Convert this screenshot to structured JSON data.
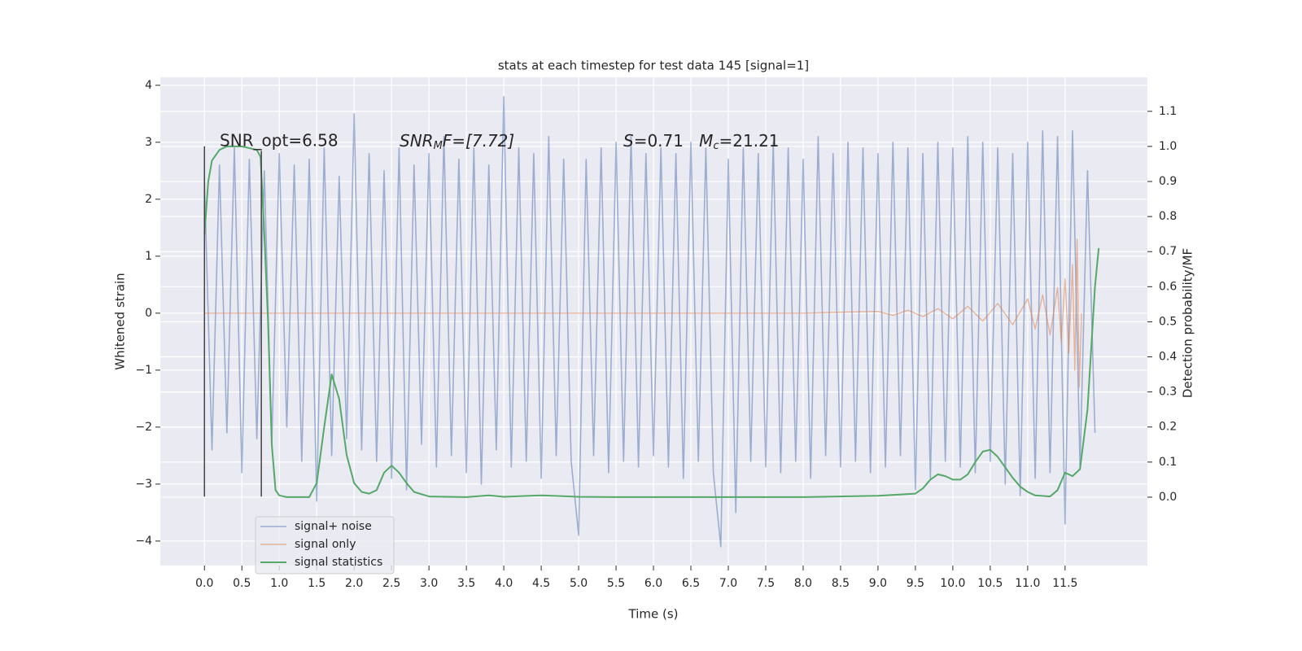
{
  "chart_data": {
    "type": "line",
    "title": "stats at each timestep for test data 145 [signal=1]",
    "xlabel": "Time (s)",
    "ylabel": "Whitened strain",
    "y2label": "Detection probability/MF",
    "xlim": [
      -0.59,
      12.6
    ],
    "ylim": [
      -4.43,
      4.14
    ],
    "y2lim": [
      -0.195,
      1.197
    ],
    "xticks": [
      {
        "value": 0,
        "label": "0.0"
      },
      0.5,
      {
        "value": 1,
        "label": "1.0"
      },
      1.5,
      {
        "value": 2,
        "label": "2.0"
      },
      2.5,
      {
        "value": 3,
        "label": "3.0"
      },
      3.5,
      {
        "value": 4,
        "label": "4.0"
      },
      4.5,
      {
        "value": 5,
        "label": "5.0"
      },
      5.5,
      {
        "value": 6,
        "label": "6.0"
      },
      6.5,
      {
        "value": 7,
        "label": "7.0"
      },
      7.5,
      {
        "value": 8,
        "label": "8.0"
      },
      8.5,
      {
        "value": 9,
        "label": "9.0"
      },
      9.5,
      {
        "value": 10,
        "label": "10.0"
      },
      10.5,
      {
        "value": 11,
        "label": "11.0"
      },
      11.5
    ],
    "yticks": [
      {
        "value": -4,
        "label": "−4"
      },
      {
        "value": -3,
        "label": "−3"
      },
      {
        "value": -2,
        "label": "−2"
      },
      {
        "value": -1,
        "label": "−1"
      },
      0,
      1,
      2,
      3,
      4
    ],
    "y2ticks": [
      {
        "value": 0,
        "label": "0.0"
      },
      0.1,
      0.2,
      0.3,
      0.4,
      0.5,
      0.6,
      0.7,
      0.8,
      0.9,
      {
        "value": 1,
        "label": "1.0"
      },
      1.1
    ],
    "grid": true,
    "legend": "lower left",
    "annotations": {
      "snr_opt": "SNR_opt=6.58",
      "snr_mf": [
        "SNR",
        "M",
        "F=[7.72]"
      ],
      "stats": [
        "S",
        "=0.71   ",
        "M",
        "c",
        "=21.21"
      ]
    },
    "vlines": [
      {
        "x": 0,
        "ymin": -3.22,
        "ymax": 2.93
      },
      {
        "x": 0.76,
        "ymin": -3.22,
        "ymax": 2.85
      }
    ],
    "series": [
      {
        "name": "signal+ noise",
        "color": "#4c72b0",
        "x": [
          0,
          0.1,
          0.2,
          0.3,
          0.4,
          0.5,
          0.6,
          0.7,
          0.8,
          0.9,
          1,
          1.1,
          1.2,
          1.3,
          1.4,
          1.5,
          1.6,
          1.7,
          1.8,
          1.9,
          2,
          2.1,
          2.2,
          2.3,
          2.4,
          2.5,
          2.6,
          2.7,
          2.8,
          2.9,
          3,
          3.1,
          3.2,
          3.3,
          3.4,
          3.5,
          3.6,
          3.7,
          3.8,
          3.9,
          4,
          4.1,
          4.2,
          4.3,
          4.4,
          4.5,
          4.6,
          4.7,
          4.8,
          4.9,
          5,
          5.1,
          5.2,
          5.3,
          5.4,
          5.5,
          5.6,
          5.7,
          5.8,
          5.9,
          6,
          6.1,
          6.2,
          6.3,
          6.4,
          6.5,
          6.6,
          6.7,
          6.8,
          6.9,
          7,
          7.1,
          7.2,
          7.3,
          7.4,
          7.5,
          7.6,
          7.7,
          7.8,
          7.9,
          8,
          8.1,
          8.2,
          8.3,
          8.4,
          8.5,
          8.6,
          8.7,
          8.8,
          8.9,
          9,
          9.1,
          9.2,
          9.3,
          9.4,
          9.5,
          9.6,
          9.7,
          9.8,
          9.9,
          10,
          10.1,
          10.2,
          10.3,
          10.4,
          10.5,
          10.6,
          10.7,
          10.8,
          10.9,
          11,
          11.1,
          11.2,
          11.3,
          11.4,
          11.5,
          11.6,
          11.7,
          11.8,
          11.9
        ],
        "values": [
          2.3,
          -2.4,
          2.6,
          -2.1,
          2.9,
          -2.8,
          2.7,
          -2.2,
          2.5,
          -2.3,
          2.8,
          -2.0,
          2.6,
          -2.6,
          2.7,
          -3.3,
          2.9,
          -2.5,
          2.4,
          -2.2,
          3.5,
          -2.4,
          2.8,
          -2.6,
          2.5,
          -2.9,
          2.9,
          -3.1,
          2.6,
          -2.3,
          2.8,
          -2.7,
          3.1,
          -2.5,
          2.7,
          -2.8,
          2.9,
          -3.0,
          2.6,
          -2.4,
          3.8,
          -2.7,
          2.9,
          -2.6,
          2.8,
          -2.9,
          3.1,
          -2.5,
          2.7,
          -2.6,
          -3.9,
          2.7,
          -2.5,
          2.9,
          -2.8,
          3.0,
          -2.6,
          3.1,
          -2.7,
          2.8,
          -2.5,
          2.9,
          -2.7,
          2.8,
          -2.9,
          3.0,
          -2.6,
          2.9,
          -2.8,
          -4.1,
          2.7,
          -3.5,
          2.9,
          -2.6,
          2.8,
          -2.7,
          3.0,
          -2.8,
          2.9,
          -2.6,
          2.7,
          -2.9,
          3.1,
          -2.5,
          2.8,
          -2.7,
          3.0,
          -2.6,
          2.9,
          -2.8,
          2.8,
          -2.7,
          3.0,
          -2.5,
          2.9,
          -3.1,
          2.8,
          -2.9,
          3.0,
          -2.6,
          2.9,
          -2.7,
          3.1,
          -2.8,
          3.0,
          -2.6,
          2.9,
          -3.0,
          2.8,
          -3.2,
          3.0,
          -2.9,
          3.2,
          -2.8,
          3.1,
          -3.7,
          3.2,
          -2.7,
          2.5,
          -2.1
        ]
      },
      {
        "name": "signal only",
        "color": "#dd8452",
        "x": [
          0,
          8.0,
          9.0,
          9.2,
          9.4,
          9.6,
          9.8,
          10.0,
          10.2,
          10.4,
          10.6,
          10.8,
          11.0,
          11.1,
          11.2,
          11.3,
          11.4,
          11.45,
          11.5,
          11.55,
          11.6,
          11.63,
          11.66,
          11.69,
          11.72
        ],
        "values": [
          0,
          0,
          0.03,
          -0.04,
          0.05,
          -0.06,
          0.08,
          -0.1,
          0.12,
          -0.14,
          0.17,
          -0.2,
          0.25,
          -0.28,
          0.32,
          -0.38,
          0.45,
          -0.5,
          0.6,
          -0.7,
          0.85,
          -1.0,
          1.3,
          -1.3,
          0
        ]
      },
      {
        "name": "signal statistics",
        "color": "#55a868",
        "axis": "y2",
        "x": [
          0,
          0.05,
          0.1,
          0.2,
          0.3,
          0.5,
          0.7,
          0.75,
          0.8,
          0.85,
          0.9,
          0.95,
          1.0,
          1.1,
          1.4,
          1.5,
          1.6,
          1.7,
          1.8,
          1.9,
          2.0,
          2.1,
          2.2,
          2.3,
          2.4,
          2.5,
          2.6,
          2.7,
          2.8,
          3.0,
          3.5,
          3.8,
          4.0,
          4.5,
          5.0,
          5.5,
          6.0,
          7.0,
          7.5,
          8.0,
          9.0,
          9.5,
          9.6,
          9.7,
          9.8,
          9.9,
          10.0,
          10.1,
          10.2,
          10.3,
          10.4,
          10.5,
          10.6,
          10.7,
          10.8,
          10.9,
          11.0,
          11.1,
          11.3,
          11.4,
          11.5,
          11.6,
          11.7,
          11.8,
          11.9,
          11.95
        ],
        "values": [
          0.75,
          0.9,
          0.96,
          0.99,
          1.0,
          1.0,
          0.99,
          0.97,
          0.75,
          0.5,
          0.15,
          0.02,
          0.005,
          0,
          0,
          0.04,
          0.2,
          0.35,
          0.28,
          0.12,
          0.04,
          0.015,
          0.01,
          0.02,
          0.07,
          0.09,
          0.07,
          0.04,
          0.015,
          0.002,
          0,
          0.005,
          0.001,
          0.005,
          0.001,
          0,
          0,
          0,
          0,
          0,
          0.004,
          0.01,
          0.025,
          0.05,
          0.065,
          0.06,
          0.05,
          0.05,
          0.065,
          0.1,
          0.13,
          0.135,
          0.115,
          0.085,
          0.055,
          0.03,
          0.015,
          0.005,
          0.002,
          0.02,
          0.07,
          0.06,
          0.08,
          0.25,
          0.6,
          0.71
        ]
      }
    ]
  }
}
